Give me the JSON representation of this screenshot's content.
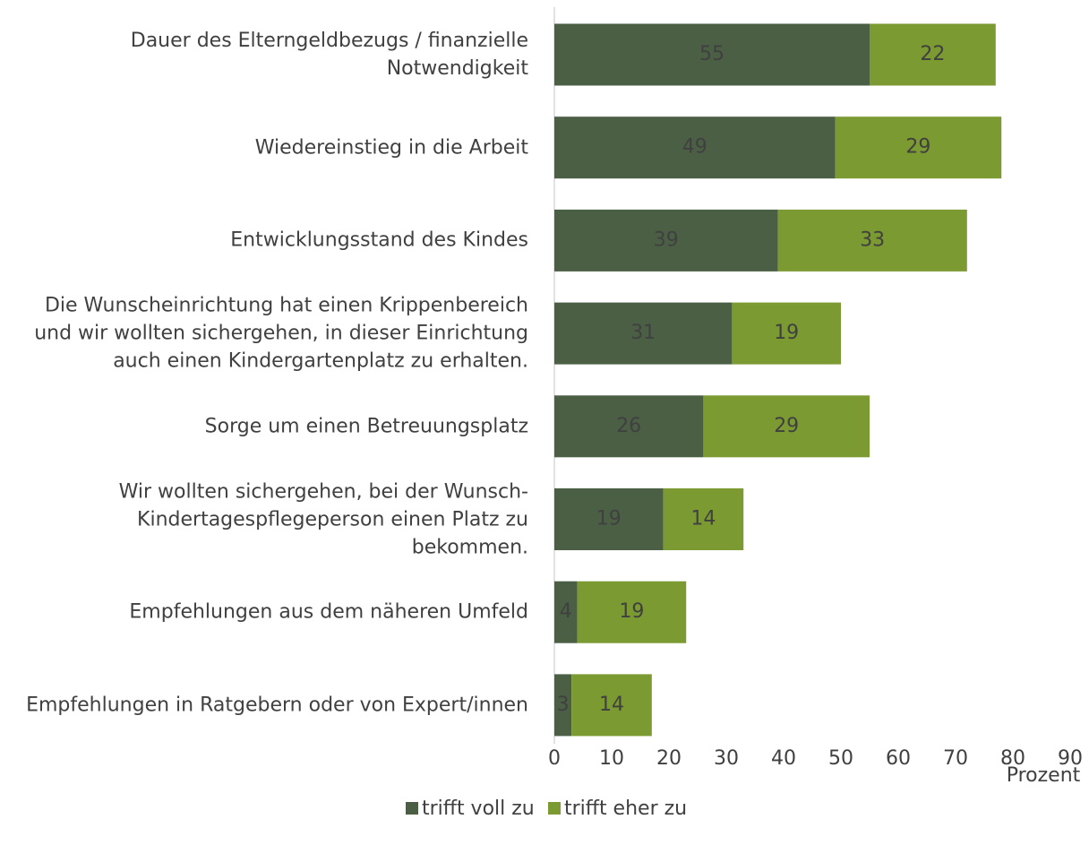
{
  "chart_data": {
    "type": "stacked_barh",
    "categories": [
      "Dauer des Elterngeldbezugs / finanzielle\nNotwendigkeit",
      "Wiedereinstieg in die Arbeit",
      "Entwicklungsstand des Kindes",
      "Die Wunscheinrichtung hat einen Krippenbereich\nund wir wollten sichergehen, in dieser Einrichtung\nauch einen Kindergartenplatz zu erhalten.",
      "Sorge um einen Betreuungsplatz",
      "Wir wollten sichergehen, bei der Wunsch-\nKindertagespflegeperson einen Platz zu\nbekommen.",
      "Empfehlungen aus dem näheren Umfeld",
      "Empfehlungen in Ratgebern oder von Expert/innen"
    ],
    "series": [
      {
        "name": "trifft voll zu",
        "color": "#4b5f45",
        "values": [
          55,
          49,
          39,
          31,
          26,
          19,
          4,
          3
        ]
      },
      {
        "name": "trifft eher zu",
        "color": "#7b9a31",
        "values": [
          22,
          29,
          33,
          19,
          29,
          14,
          19,
          14
        ]
      }
    ],
    "xlabel": "Prozent",
    "xlim": [
      0,
      90
    ],
    "xticks": [
      0,
      10,
      20,
      30,
      40,
      50,
      60,
      70,
      80,
      90
    ],
    "legend": "bottom"
  }
}
